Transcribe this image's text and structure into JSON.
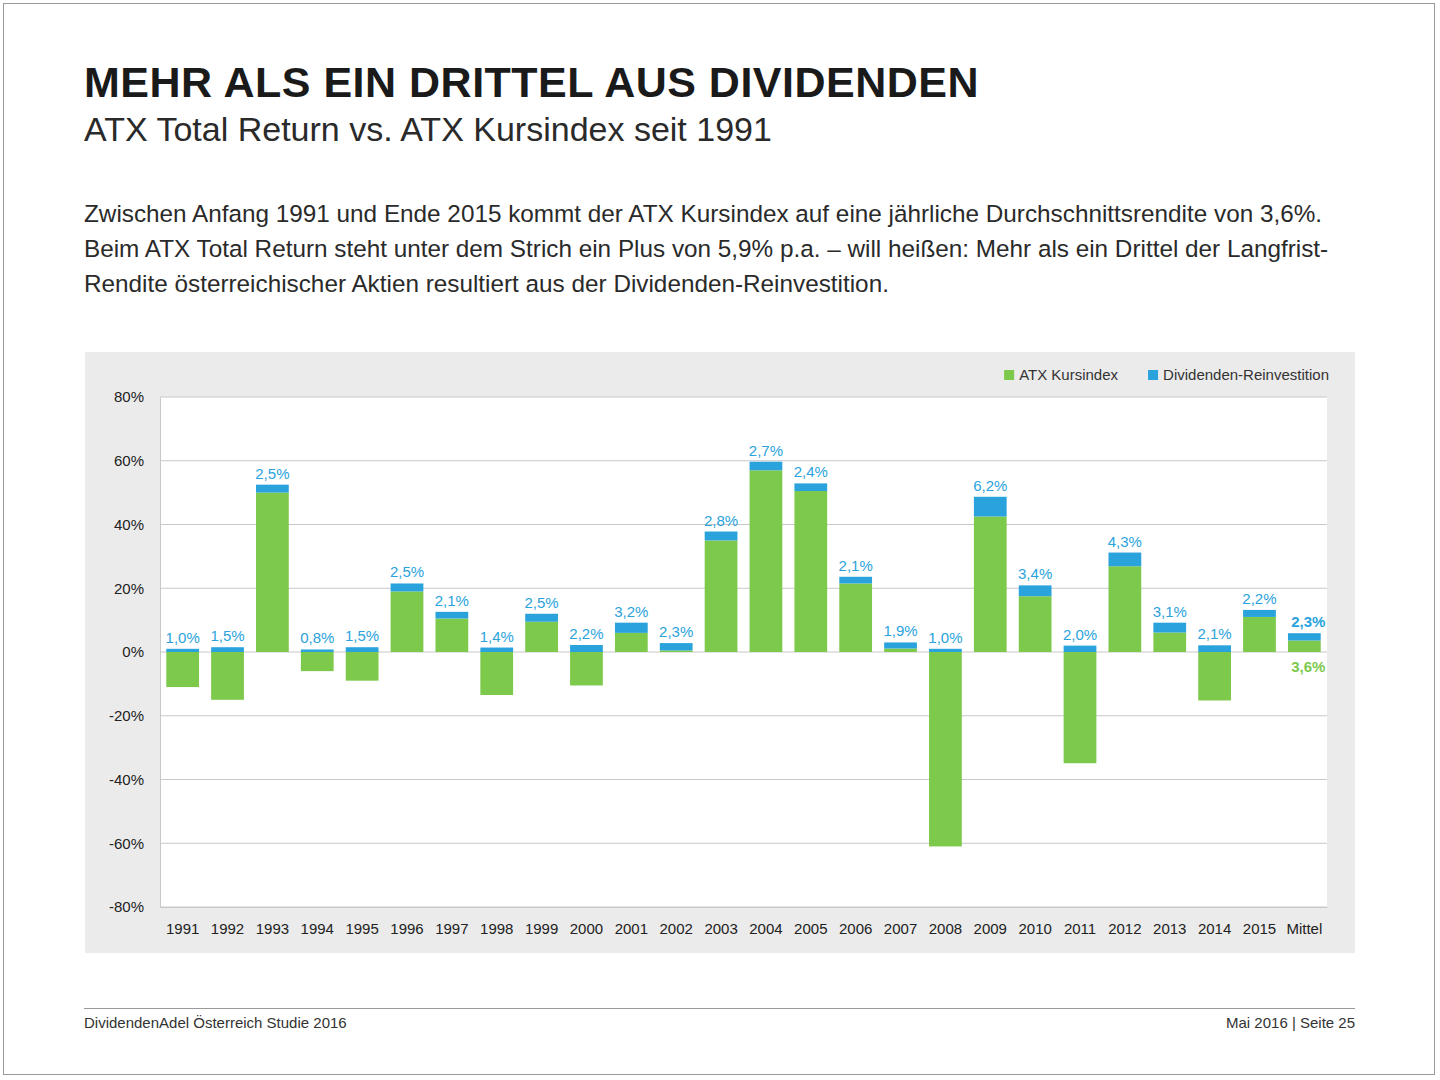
{
  "chart_data": {
    "type": "bar",
    "title": "MEHR ALS EIN DRITTEL AUS DIVIDENDEN",
    "subtitle": "ATX Total Return vs. ATX Kursindex seit 1991",
    "description": "Zwischen Anfang 1991 und Ende 2015 kommt der ATX Kursindex auf eine jährliche Durchschnittsrendite von 3,6%. Beim ATX Total Return steht unter dem Strich ein Plus von 5,9% p.a. – will heißen: Mehr als ein Drittel der Langfrist-Rendite österreichischer Aktien resultiert aus der Dividenden-Reinvestition.",
    "categories": [
      "1991",
      "1992",
      "1993",
      "1994",
      "1995",
      "1996",
      "1997",
      "1998",
      "1999",
      "2000",
      "2001",
      "2002",
      "2003",
      "2004",
      "2005",
      "2006",
      "2007",
      "2008",
      "2009",
      "2010",
      "2011",
      "2012",
      "2013",
      "2014",
      "2015",
      "Mittel"
    ],
    "series": [
      {
        "name": "ATX Kursindex",
        "color": "#7dc94c",
        "values": [
          -11,
          -15,
          50,
          -6,
          -9,
          19,
          10.5,
          -13.5,
          9.5,
          -10.5,
          6,
          0.5,
          35,
          57,
          50.5,
          21.5,
          1.1,
          -61,
          42.5,
          17.5,
          -34.9,
          26.9,
          6.1,
          -15.2,
          11,
          3.6
        ],
        "value_labels": [
          null,
          null,
          null,
          null,
          null,
          null,
          null,
          null,
          null,
          null,
          null,
          null,
          null,
          null,
          null,
          null,
          null,
          null,
          null,
          null,
          null,
          null,
          null,
          null,
          null,
          "3,6%"
        ]
      },
      {
        "name": "Dividenden-Reinvestition",
        "color": "#2aa3dc",
        "values": [
          1.0,
          1.5,
          2.5,
          0.8,
          1.5,
          2.5,
          2.1,
          1.4,
          2.5,
          2.2,
          3.2,
          2.3,
          2.8,
          2.7,
          2.4,
          2.1,
          1.9,
          1.0,
          6.2,
          3.4,
          2.0,
          4.3,
          3.1,
          2.1,
          2.2,
          2.3
        ],
        "value_labels": [
          "1,0%",
          "1,5%",
          "2,5%",
          "0,8%",
          "1,5%",
          "2,5%",
          "2,1%",
          "1,4%",
          "2,5%",
          "2,2%",
          "3,2%",
          "2,3%",
          "2,8%",
          "2,7%",
          "2,4%",
          "2,1%",
          "1,9%",
          "1,0%",
          "6,2%",
          "3,4%",
          "2,0%",
          "4,3%",
          "3,1%",
          "2,1%",
          "2,2%",
          "2,3%"
        ]
      }
    ],
    "stacked": true,
    "data_labels": true,
    "grid": true,
    "legend": "top-right",
    "ylim": [
      -80,
      80
    ],
    "yticks": [
      {
        "value": -80,
        "label": "-80%"
      },
      {
        "value": -60,
        "label": "-60%"
      },
      {
        "value": -40,
        "label": "-40%"
      },
      {
        "value": -20,
        "label": "-20%"
      },
      {
        "value": 0,
        "label": "0%"
      },
      {
        "value": 20,
        "label": "20%"
      },
      {
        "value": 40,
        "label": "40%"
      },
      {
        "value": 60,
        "label": "60%"
      },
      {
        "value": 80,
        "label": "80%"
      }
    ]
  },
  "footer": {
    "left": "DividendenAdel Österreich Studie 2016",
    "right": "Mai 2016 | Seite 25"
  }
}
